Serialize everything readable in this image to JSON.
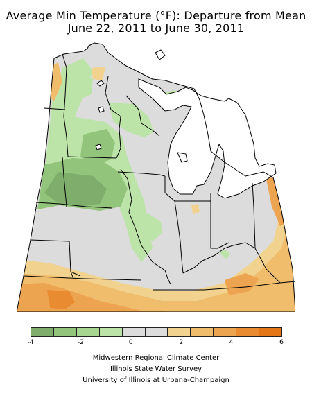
{
  "title": {
    "line1": "Average Min Temperature (°F): Departure from Mean",
    "line2": "June 22, 2011 to June 30, 2011"
  },
  "map": {
    "region": "Midwest United States",
    "colors": {
      "dark_green": "#7fae6c",
      "medium_green": "#92c47b",
      "light_green": "#bde4a8",
      "gray": "#dcdcdc",
      "water": "#ffffff",
      "pale_orange": "#f2d28f",
      "light_orange": "#f0bd6c",
      "orange": "#eda451",
      "dark_orange": "#e98c31",
      "deep_orange": "#e57617"
    }
  },
  "legend": {
    "swatches": [
      "#7fae6c",
      "#92c47b",
      "#a7d690",
      "#bde4a8",
      "#dcdcdc",
      "#dcdcdc",
      "#f2d28f",
      "#f0bd6c",
      "#eda451",
      "#e98c31",
      "#e57617"
    ],
    "tick_labels": [
      "-4",
      "-2",
      "0",
      "2",
      "4",
      "6"
    ]
  },
  "credits": [
    "Midwestern Regional Climate Center",
    "Illinois State Water Survey",
    "University of Illinois at Urbana-Champaign"
  ]
}
